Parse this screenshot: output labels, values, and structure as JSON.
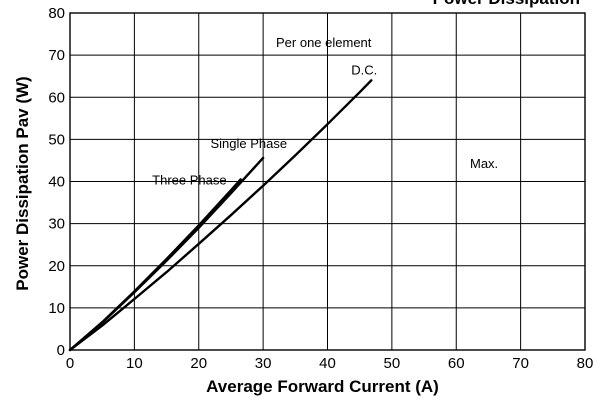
{
  "chart_data": {
    "type": "line",
    "title": "Power Dissipation",
    "xlabel": "Average Forward Current (A)",
    "ylabel": "Power Dissipation Pav (W)",
    "xlim": [
      0,
      80
    ],
    "ylim": [
      0,
      80
    ],
    "xticks": [
      "0",
      "10",
      "20",
      "30",
      "40",
      "50",
      "60",
      "70",
      "80"
    ],
    "yticks": [
      "0",
      "10",
      "20",
      "30",
      "40",
      "50",
      "60",
      "70",
      "80"
    ],
    "grid": true,
    "annotations": {
      "per_element": "Per one element",
      "max": "Max."
    },
    "series": [
      {
        "name": "D.C.",
        "x": [
          0,
          5,
          10,
          15,
          20,
          25,
          30,
          35,
          40,
          45,
          46.8
        ],
        "y": [
          0,
          5.8,
          12.1,
          18.5,
          25.2,
          32.0,
          39.0,
          46.2,
          53.6,
          61.2,
          64.0
        ]
      },
      {
        "name": "Single Phase",
        "x": [
          0,
          5,
          10,
          15,
          20,
          25,
          30
        ],
        "y": [
          0,
          6.5,
          13.7,
          21.2,
          29.0,
          37.2,
          45.6
        ]
      },
      {
        "name": "Three Phase",
        "x": [
          0,
          5,
          10,
          15,
          20,
          25,
          26.5
        ],
        "y": [
          0,
          6.6,
          13.9,
          21.6,
          29.6,
          37.9,
          40.5
        ]
      }
    ]
  }
}
